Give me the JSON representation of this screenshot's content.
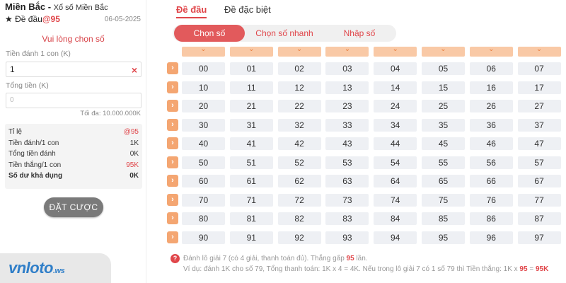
{
  "header": {
    "region": "Miền Bắc",
    "separator": " - ",
    "lottery_name": "Xổ số Miền Bắc",
    "star": "★",
    "game_type": "Đề đầu",
    "rate": "@95",
    "date": "06-05-2025"
  },
  "form": {
    "choose_prompt": "Vui lòng chọn số",
    "bet_per_label": "Tiền đánh 1 con (K)",
    "bet_per_value": "1",
    "clear_icon": "×",
    "total_label": "Tổng tiền (K)",
    "total_placeholder": "0",
    "max_note": "Tối đa: 10.000.000K"
  },
  "summary": {
    "rows": [
      {
        "label": "Tỉ lệ",
        "value": "@95"
      },
      {
        "label": "Tiền đánh/1 con",
        "value": "1K"
      },
      {
        "label": "Tổng tiền đánh",
        "value": "0K"
      },
      {
        "label": "Tiền thắng/1 con",
        "value": "95K"
      },
      {
        "label": "Số dư khả dụng",
        "value": "0K"
      }
    ]
  },
  "actions": {
    "bet_button": "ĐẶT CƯỢC"
  },
  "logo": {
    "main": "vnloto",
    "suffix": ".ws"
  },
  "tabs": {
    "de_dau": "Đề đầu",
    "de_dac_biet": "Đề đặc biệt"
  },
  "segments": {
    "chon_so": "Chọn số",
    "chon_so_nhanh": "Chọn số nhanh",
    "nhap_so": "Nhập số"
  },
  "icons": {
    "column_select": "chevron-down-icon",
    "row_select": "chevron-right-icon",
    "clear": "close-icon",
    "help": "question-icon"
  },
  "grid": {
    "rows": [
      [
        "00",
        "01",
        "02",
        "03",
        "04",
        "05",
        "06",
        "07"
      ],
      [
        "10",
        "11",
        "12",
        "13",
        "14",
        "15",
        "16",
        "17"
      ],
      [
        "20",
        "21",
        "22",
        "23",
        "24",
        "25",
        "26",
        "27"
      ],
      [
        "30",
        "31",
        "32",
        "33",
        "34",
        "35",
        "36",
        "37"
      ],
      [
        "40",
        "41",
        "42",
        "43",
        "44",
        "45",
        "46",
        "47"
      ],
      [
        "50",
        "51",
        "52",
        "53",
        "54",
        "55",
        "56",
        "57"
      ],
      [
        "60",
        "61",
        "62",
        "63",
        "64",
        "65",
        "66",
        "67"
      ],
      [
        "70",
        "71",
        "72",
        "73",
        "74",
        "75",
        "76",
        "77"
      ],
      [
        "80",
        "81",
        "82",
        "83",
        "84",
        "85",
        "86",
        "87"
      ],
      [
        "90",
        "91",
        "92",
        "93",
        "94",
        "95",
        "96",
        "97"
      ]
    ]
  },
  "note": {
    "help_icon": "?",
    "line1_a": "Đánh lô giải 7 (có 4 giải, thanh toán đủ). Thắng gấp ",
    "line1_rate": "95",
    "line1_b": " lần.",
    "line2_a": "Ví dụ: đánh 1K cho số 79, Tổng thanh toán: 1K x 4 = 4K. Nếu trong lô giải 7 có 1 số 79 thì Tiền thắng: 1K x ",
    "line2_rate": "95",
    "line2_b": " = ",
    "line2_total": "95K"
  },
  "colors": {
    "accent": "#e0464a",
    "orange": "#f4a672",
    "header_peach": "#f9c9a6",
    "cell_bg": "#eef0f4"
  }
}
